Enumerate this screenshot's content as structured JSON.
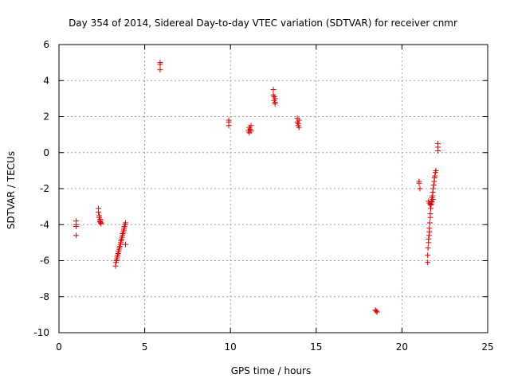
{
  "chart_data": {
    "type": "scatter",
    "title": "Day 354 of 2014, Sidereal Day-to-day VTEC variation (SDTVAR) for receiver cnmr",
    "xlabel": "GPS time / hours",
    "ylabel": "SDTVAR / TECUs",
    "xlim": [
      0,
      25
    ],
    "ylim": [
      -10,
      6
    ],
    "xticks": [
      0,
      5,
      10,
      15,
      20,
      25
    ],
    "yticks": [
      -10,
      -8,
      -6,
      -4,
      -2,
      0,
      2,
      4,
      6
    ],
    "xtick_labels": [
      "0",
      "5",
      "10",
      "15",
      "20",
      "25"
    ],
    "ytick_labels": [
      "-10",
      "-8",
      "-6",
      "-4",
      "-2",
      "0",
      "2",
      "4",
      "6"
    ],
    "grid": true,
    "marker": "+",
    "colors": {
      "points": "#e00000",
      "grid": "#a0a0a0",
      "axes": "#000000"
    },
    "series": [
      {
        "name": "SDTVAR",
        "x": [
          1.0,
          1.0,
          1.0,
          1.0,
          2.3,
          2.3,
          2.35,
          2.35,
          2.4,
          2.4,
          2.4,
          2.45,
          2.45,
          3.3,
          3.32,
          3.35,
          3.38,
          3.4,
          3.42,
          3.45,
          3.48,
          3.5,
          3.52,
          3.55,
          3.58,
          3.6,
          3.62,
          3.65,
          3.68,
          3.7,
          3.72,
          3.75,
          3.78,
          3.8,
          3.82,
          3.85,
          3.88,
          3.88,
          5.9,
          5.9,
          5.9,
          9.9,
          9.9,
          9.9,
          11.05,
          11.1,
          11.1,
          11.15,
          11.2,
          11.2,
          12.5,
          12.5,
          12.55,
          12.55,
          12.6,
          12.6,
          12.6,
          13.9,
          13.9,
          13.95,
          13.95,
          14.0,
          14.0,
          18.45,
          18.5,
          18.55,
          21.0,
          21.0,
          21.05,
          21.5,
          21.5,
          21.52,
          21.55,
          21.55,
          21.58,
          21.6,
          21.6,
          21.62,
          21.65,
          21.65,
          21.68,
          21.7,
          21.72,
          21.75,
          21.78,
          21.8,
          21.82,
          21.85,
          21.88,
          21.9,
          21.92,
          21.95,
          21.98,
          21.55,
          21.6,
          21.65,
          21.7,
          21.75,
          21.8,
          22.1,
          22.1,
          22.1
        ],
        "y": [
          -3.8,
          -4.0,
          -4.1,
          -4.6,
          -3.1,
          -3.3,
          -3.5,
          -3.6,
          -3.7,
          -3.8,
          -3.85,
          -3.9,
          -3.95,
          -6.3,
          -6.1,
          -6.0,
          -5.9,
          -5.8,
          -5.7,
          -5.6,
          -5.5,
          -5.4,
          -5.3,
          -5.2,
          -5.1,
          -5.0,
          -4.9,
          -4.8,
          -4.7,
          -4.6,
          -4.5,
          -4.4,
          -4.3,
          -4.2,
          -4.1,
          -4.0,
          -3.9,
          -5.1,
          5.0,
          4.9,
          4.6,
          1.8,
          1.7,
          1.5,
          1.2,
          1.1,
          1.4,
          1.3,
          1.2,
          1.5,
          3.5,
          3.2,
          3.1,
          2.9,
          3.0,
          2.8,
          2.7,
          1.9,
          1.7,
          1.6,
          1.5,
          1.8,
          1.4,
          -8.75,
          -8.8,
          -8.85,
          -1.6,
          -1.7,
          -2.0,
          -6.1,
          -5.7,
          -5.3,
          -5.0,
          -4.8,
          -4.6,
          -4.4,
          -4.2,
          -3.9,
          -3.6,
          -3.4,
          -3.1,
          -2.9,
          -2.7,
          -2.5,
          -2.4,
          -2.2,
          -2.0,
          -1.8,
          -1.6,
          -1.4,
          -1.3,
          -1.1,
          -1.0,
          -2.7,
          -2.8,
          -2.9,
          -2.85,
          -2.75,
          -2.6,
          0.5,
          0.3,
          0.1
        ]
      }
    ]
  }
}
